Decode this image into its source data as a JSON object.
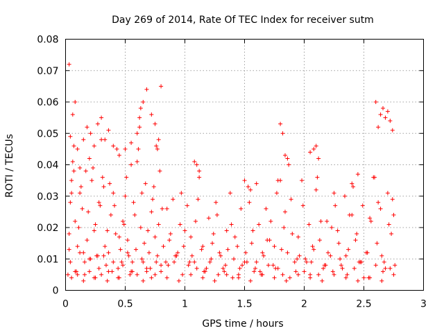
{
  "chart_data": {
    "type": "scatter",
    "title": "Day 269 of 2014, Rate Of TEC Index for receiver sutm",
    "xlabel": "GPS time / hours",
    "ylabel": "ROTI / TECUs",
    "xlim": [
      0,
      3
    ],
    "ylim": [
      0,
      0.08
    ],
    "x_ticks": [
      "0",
      "0.5",
      "1",
      "1.5",
      "2",
      "2.5",
      "3"
    ],
    "y_ticks": [
      "0",
      "0.01",
      "0.02",
      "0.03",
      "0.04",
      "0.05",
      "0.06",
      "0.07",
      "0.08"
    ],
    "grid": true,
    "marker": "plus",
    "color": "#ff0000",
    "x_range_of_points": [
      0.02,
      2.76
    ],
    "series": [
      {
        "name": "ROTI",
        "x": [
          0.02,
          0.03,
          0.04,
          0.05,
          0.06,
          0.07,
          0.08,
          0.09,
          0.1,
          0.12,
          0.14,
          0.16,
          0.18,
          0.2,
          0.22,
          0.24,
          0.26,
          0.28,
          0.3,
          0.32,
          0.34,
          0.36,
          0.38,
          0.4,
          0.42,
          0.44,
          0.46,
          0.48,
          0.5,
          0.52,
          0.54,
          0.56,
          0.58,
          0.6,
          0.62,
          0.64,
          0.66,
          0.68,
          0.7,
          0.72,
          0.74,
          0.76,
          0.78,
          0.8,
          0.82,
          0.85,
          0.88,
          0.91,
          0.94,
          0.97,
          1.0,
          1.03,
          1.06,
          1.09,
          1.12,
          1.15,
          1.18,
          1.21,
          1.24,
          1.27,
          1.3,
          1.33,
          1.36,
          1.39,
          1.42,
          1.45,
          1.48,
          1.51,
          1.54,
          1.57,
          1.6,
          1.63,
          1.66,
          1.69,
          1.72,
          1.75,
          1.78,
          1.81,
          1.84,
          1.87,
          1.9,
          1.93,
          1.96,
          1.99,
          2.02,
          2.05,
          2.08,
          2.11,
          2.14,
          2.17,
          2.2,
          2.23,
          2.26,
          2.29,
          2.32,
          2.35,
          2.38,
          2.41,
          2.44,
          2.47,
          2.5,
          2.53,
          2.56,
          2.59,
          2.62,
          2.65,
          2.68,
          2.71,
          2.74,
          2.76,
          0.03,
          0.05,
          0.07,
          0.09,
          0.11,
          0.13,
          0.15,
          0.17,
          0.19,
          0.21,
          0.23,
          0.25,
          0.27,
          0.29,
          0.31,
          0.33,
          0.35,
          0.37,
          0.39,
          0.41,
          0.43,
          0.45,
          0.47,
          0.49,
          0.51,
          0.53,
          0.55,
          0.57,
          0.59,
          0.61,
          0.63,
          0.65,
          0.67,
          0.69,
          0.71,
          0.73,
          0.75,
          0.77,
          0.79,
          0.81,
          0.84,
          0.87,
          0.9,
          0.93,
          0.96,
          0.99,
          1.02,
          1.05,
          1.08,
          1.11,
          1.14,
          1.17,
          1.2,
          1.23,
          1.26,
          1.29,
          1.32,
          1.35,
          1.38,
          1.41,
          1.44,
          1.47,
          1.5,
          1.53,
          1.56,
          1.59,
          1.62,
          1.65,
          1.68,
          1.71,
          1.74,
          1.77,
          1.8,
          1.83,
          1.86,
          1.89,
          1.92,
          1.95,
          1.98,
          2.01,
          2.04,
          2.07,
          2.1,
          2.13,
          2.16,
          2.19,
          2.22,
          2.25,
          2.28,
          2.31,
          2.34,
          2.37,
          2.4,
          2.43,
          2.46,
          2.49,
          2.52,
          2.55,
          2.58,
          2.61,
          2.64,
          2.67,
          2.7,
          2.73,
          2.75,
          0.04,
          0.08,
          0.12,
          0.16,
          0.2,
          0.24,
          0.28,
          0.32,
          0.36,
          0.4,
          0.44,
          0.48,
          0.52,
          0.56,
          0.6,
          0.64,
          0.68,
          0.72,
          0.76,
          0.8,
          0.86,
          0.92,
          0.98,
          1.04,
          1.1,
          1.16,
          1.22,
          1.28,
          1.34,
          1.4,
          1.46,
          1.52,
          1.58,
          1.64,
          1.7,
          1.76,
          1.82,
          1.88,
          1.94,
          2.0,
          2.06,
          2.12,
          2.18,
          2.24,
          2.3,
          2.36,
          2.42,
          2.48,
          2.54,
          2.6,
          2.66,
          2.72,
          0.03,
          0.04,
          0.06,
          0.08,
          0.1,
          0.12,
          0.15,
          0.18,
          0.21,
          0.24,
          0.27,
          0.3,
          0.33,
          0.36,
          0.4,
          0.45,
          0.5,
          0.55,
          0.6,
          0.62,
          0.63,
          0.65,
          0.68,
          0.72,
          0.75,
          0.77,
          0.78,
          0.8,
          1.08,
          1.1,
          1.12,
          1.5,
          1.55,
          1.6,
          1.78,
          1.8,
          1.82,
          1.84,
          1.86,
          2.05,
          2.08,
          2.1,
          2.12,
          2.4,
          2.45,
          2.6,
          2.62,
          2.64,
          2.66,
          2.68,
          2.7,
          2.72,
          2.74,
          0.05,
          0.1,
          0.15,
          0.2,
          0.25,
          0.3,
          0.35,
          0.45,
          0.55,
          0.65,
          0.75,
          0.85,
          0.95,
          1.05,
          1.15,
          1.25,
          1.35,
          1.45,
          1.55,
          1.65,
          1.75,
          1.85,
          1.95,
          2.05,
          2.15,
          2.25,
          2.35,
          2.45,
          2.55,
          2.65,
          2.75
        ],
        "y": [
          0.005,
          0.013,
          0.028,
          0.035,
          0.041,
          0.038,
          0.022,
          0.006,
          0.014,
          0.031,
          0.026,
          0.009,
          0.016,
          0.042,
          0.035,
          0.019,
          0.011,
          0.028,
          0.048,
          0.033,
          0.008,
          0.012,
          0.024,
          0.031,
          0.018,
          0.007,
          0.013,
          0.022,
          0.03,
          0.016,
          0.005,
          0.009,
          0.024,
          0.041,
          0.052,
          0.031,
          0.015,
          0.006,
          0.012,
          0.025,
          0.033,
          0.046,
          0.021,
          0.008,
          0.014,
          0.026,
          0.018,
          0.009,
          0.012,
          0.031,
          0.019,
          0.008,
          0.011,
          0.022,
          0.036,
          0.014,
          0.007,
          0.009,
          0.018,
          0.024,
          0.011,
          0.006,
          0.013,
          0.021,
          0.017,
          0.005,
          0.008,
          0.012,
          0.028,
          0.019,
          0.009,
          0.006,
          0.011,
          0.016,
          0.022,
          0.014,
          0.007,
          0.013,
          0.025,
          0.04,
          0.018,
          0.006,
          0.011,
          0.027,
          0.009,
          0.005,
          0.013,
          0.036,
          0.022,
          0.008,
          0.012,
          0.02,
          0.027,
          0.015,
          0.007,
          0.011,
          0.024,
          0.033,
          0.018,
          0.009,
          0.004,
          0.012,
          0.022,
          0.036,
          0.028,
          0.011,
          0.007,
          0.021,
          0.029,
          0.008,
          0.018,
          0.031,
          0.046,
          0.006,
          0.02,
          0.033,
          0.012,
          0.038,
          0.025,
          0.01,
          0.039,
          0.021,
          0.011,
          0.027,
          0.036,
          0.014,
          0.019,
          0.034,
          0.006,
          0.027,
          0.045,
          0.017,
          0.009,
          0.021,
          0.036,
          0.011,
          0.04,
          0.028,
          0.013,
          0.045,
          0.02,
          0.009,
          0.034,
          0.019,
          0.007,
          0.029,
          0.017,
          0.011,
          0.038,
          0.026,
          0.009,
          0.016,
          0.029,
          0.011,
          0.021,
          0.014,
          0.027,
          0.017,
          0.009,
          0.029,
          0.013,
          0.006,
          0.023,
          0.015,
          0.028,
          0.012,
          0.007,
          0.019,
          0.031,
          0.01,
          0.014,
          0.026,
          0.009,
          0.033,
          0.015,
          0.007,
          0.021,
          0.012,
          0.026,
          0.016,
          0.008,
          0.031,
          0.035,
          0.02,
          0.012,
          0.029,
          0.009,
          0.017,
          0.035,
          0.01,
          0.021,
          0.014,
          0.032,
          0.016,
          0.007,
          0.022,
          0.011,
          0.031,
          0.019,
          0.008,
          0.03,
          0.013,
          0.024,
          0.016,
          0.009,
          0.027,
          0.012,
          0.023,
          0.036,
          0.015,
          0.026,
          0.009,
          0.031,
          0.018,
          0.024,
          0.009,
          0.006,
          0.012,
          0.005,
          0.01,
          0.004,
          0.007,
          0.011,
          0.006,
          0.009,
          0.004,
          0.008,
          0.012,
          0.006,
          0.005,
          0.01,
          0.007,
          0.004,
          0.009,
          0.006,
          0.008,
          0.011,
          0.005,
          0.009,
          0.007,
          0.006,
          0.01,
          0.005,
          0.008,
          0.004,
          0.007,
          0.009,
          0.006,
          0.005,
          0.008,
          0.007,
          0.005,
          0.004,
          0.01,
          0.006,
          0.009,
          0.005,
          0.008,
          0.006,
          0.01,
          0.005,
          0.007,
          0.009,
          0.004,
          0.008,
          0.006,
          0.007,
          0.072,
          0.049,
          0.056,
          0.06,
          0.045,
          0.039,
          0.048,
          0.052,
          0.05,
          0.046,
          0.053,
          0.055,
          0.048,
          0.051,
          0.046,
          0.043,
          0.045,
          0.047,
          0.05,
          0.055,
          0.058,
          0.06,
          0.064,
          0.056,
          0.053,
          0.045,
          0.048,
          0.065,
          0.041,
          0.04,
          0.038,
          0.035,
          0.032,
          0.034,
          0.035,
          0.053,
          0.05,
          0.043,
          0.042,
          0.044,
          0.045,
          0.046,
          0.042,
          0.034,
          0.037,
          0.06,
          0.052,
          0.056,
          0.058,
          0.055,
          0.057,
          0.054,
          0.051,
          0.004,
          0.005,
          0.003,
          0.006,
          0.004,
          0.005,
          0.003,
          0.004,
          0.006,
          0.003,
          0.005,
          0.004,
          0.003,
          0.005,
          0.004,
          0.003,
          0.005,
          0.004,
          0.003,
          0.005,
          0.004,
          0.003,
          0.005,
          0.004,
          0.003,
          0.005,
          0.004,
          0.003,
          0.004,
          0.003,
          0.005
        ]
      }
    ]
  }
}
